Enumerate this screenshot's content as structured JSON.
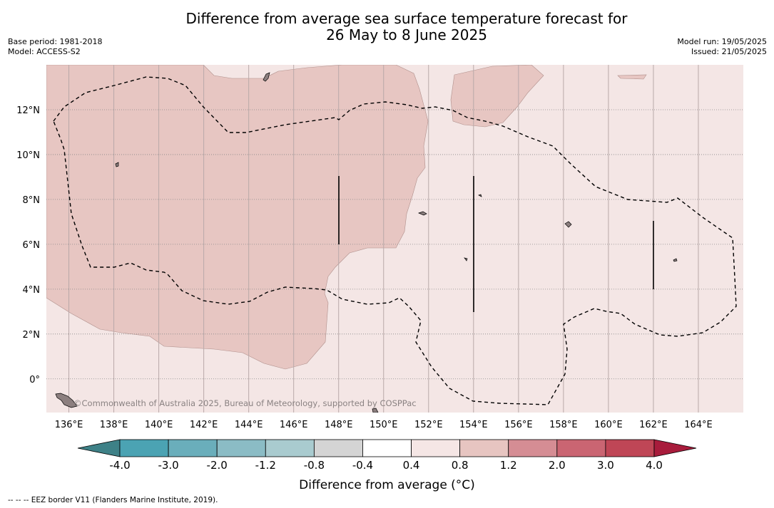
{
  "header": {
    "title_line1": "Difference from average sea surface temperature forecast for",
    "title_line2": "26 May to 8 June 2025",
    "base_period": "Base period: 1981-2018",
    "model": "Model: ACCESS-S2",
    "model_run": "Model run: 19/05/2025",
    "issued": "Issued: 21/05/2025"
  },
  "map": {
    "lon_ticks": [
      "136°E",
      "138°E",
      "140°E",
      "142°E",
      "144°E",
      "146°E",
      "148°E",
      "150°E",
      "152°E",
      "154°E",
      "156°E",
      "158°E",
      "160°E",
      "162°E",
      "164°E"
    ],
    "lat_ticks": [
      "12°N",
      "10°N",
      "8°N",
      "6°N",
      "4°N",
      "2°N",
      "0°"
    ],
    "lon_values": [
      136,
      138,
      140,
      142,
      144,
      146,
      148,
      150,
      152,
      154,
      156,
      158,
      160,
      162,
      164
    ],
    "lat_values": [
      12,
      10,
      8,
      6,
      4,
      2,
      0
    ],
    "lon_range": [
      135,
      166
    ],
    "lat_range": [
      -1.5,
      14
    ],
    "attribution": "©Commonwealth of Australia 2025, Bureau of Meteorology, supported by COSPPac",
    "background_category": "0.4 to 0.8",
    "anomaly_region_category": "0.8 to 1.2",
    "colors": {
      "cat_0_4_0_8": "#f4e6e5",
      "cat_0_8_1_2": "#e7c6c2",
      "land": "#8c7f7f"
    }
  },
  "colorbar": {
    "tick_labels": [
      "-4.0",
      "-3.0",
      "-2.0",
      "-1.2",
      "-0.8",
      "-0.4",
      "0.4",
      "0.8",
      "1.2",
      "2.0",
      "3.0",
      "4.0"
    ],
    "colors": [
      "#4ba3b3",
      "#6aaebb",
      "#8bbcc5",
      "#a9cbcf",
      "#d4d4d4",
      "#ffffff",
      "#f5e6e5",
      "#e7c5c1",
      "#d58d94",
      "#ca6572",
      "#bf4656"
    ],
    "extend_low_color": "#3e8187",
    "extend_high_color": "#a81c3c",
    "label": "Difference from average (°C)"
  },
  "footer": {
    "legend": "-- -- -- EEZ border V11 (Flanders Marine Institute, 2019)."
  }
}
